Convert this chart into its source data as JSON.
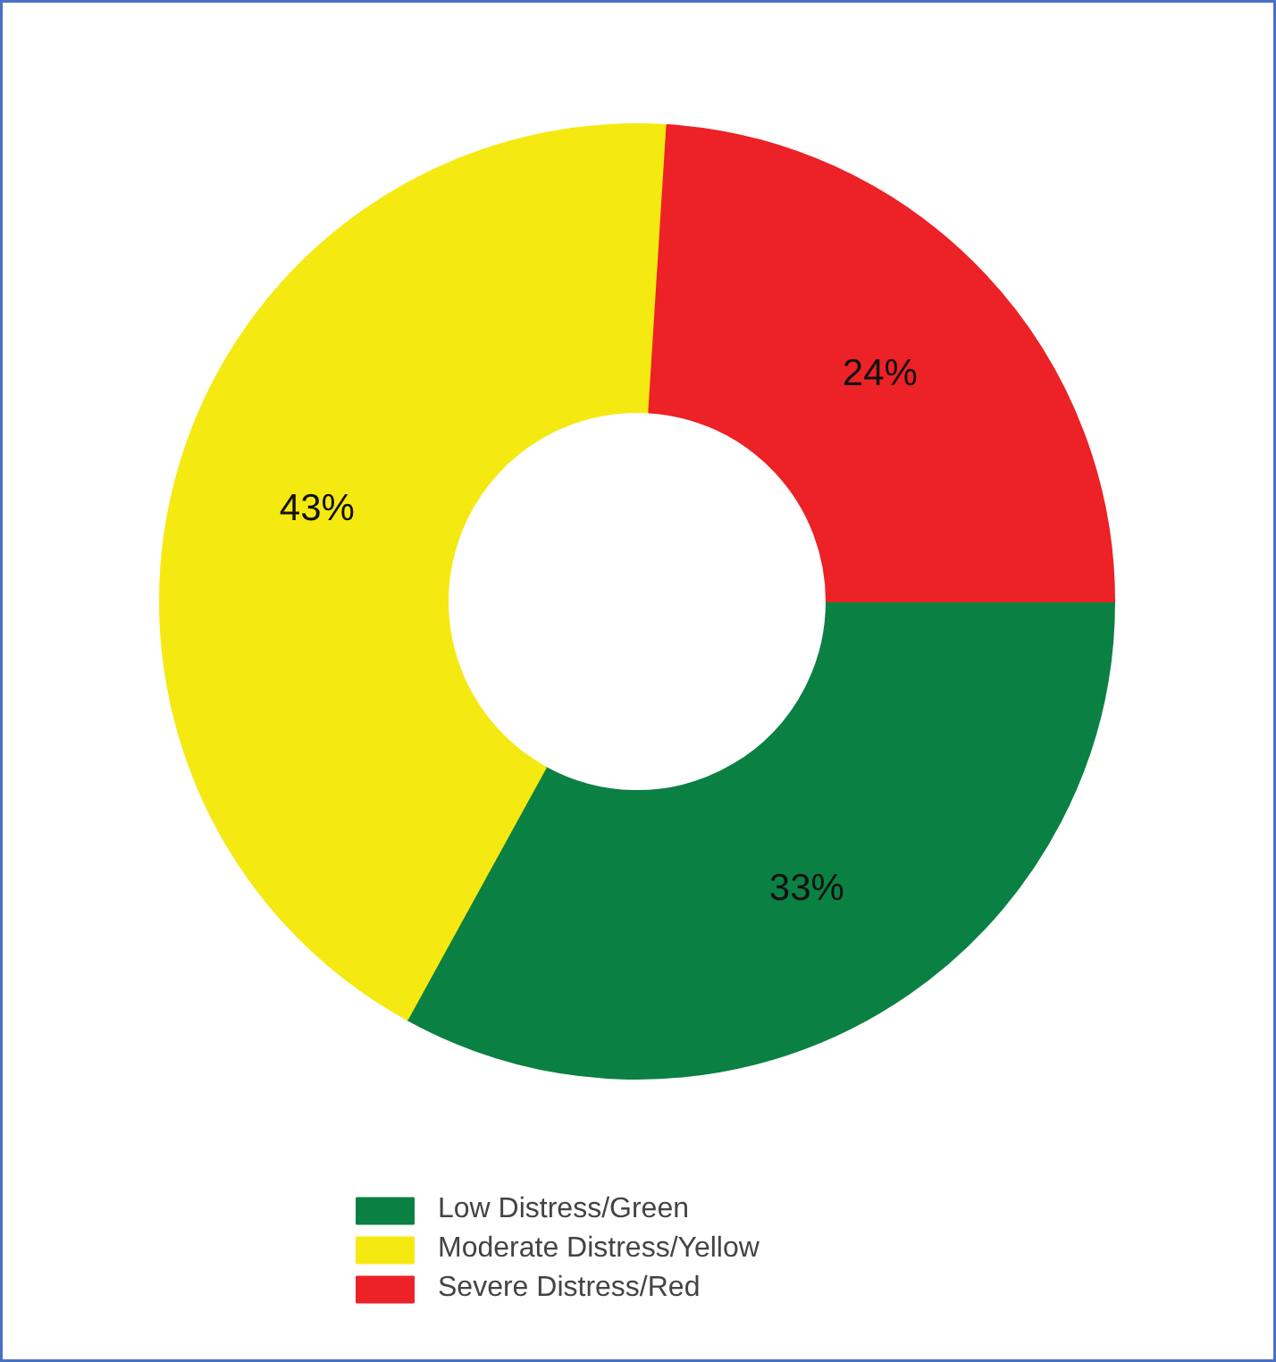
{
  "chart_data": {
    "type": "donut",
    "categories": [
      "Low Distress/Green",
      "Moderate Distress/Yellow",
      "Severe Distress/Red"
    ],
    "values": [
      33,
      43,
      24
    ],
    "colors": [
      "#0b8043",
      "#f5e912",
      "#ec2227"
    ],
    "value_labels": [
      "33%",
      "43%",
      "24%"
    ],
    "legend": "bottom"
  }
}
